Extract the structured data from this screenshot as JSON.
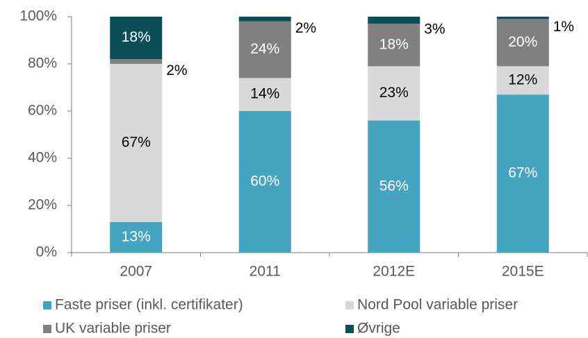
{
  "chart_data": {
    "type": "stacked_bar",
    "categories": [
      "2007",
      "2011",
      "2012E",
      "2015E"
    ],
    "series": [
      {
        "name": "Faste priser (inkl. certifikater)",
        "color": "#45a4bf",
        "label_color": "#ffffff",
        "values": [
          13,
          60,
          56,
          67
        ],
        "value_labels": [
          "13%",
          "60%",
          "56%",
          "67%"
        ]
      },
      {
        "name": "Nord Pool variable priser",
        "color": "#d9d9d9",
        "label_color": "#000000",
        "values": [
          67,
          14,
          23,
          12
        ],
        "value_labels": [
          "67%",
          "14%",
          "23%",
          "12%"
        ]
      },
      {
        "name": "UK variable priser",
        "color": "#808080",
        "label_color": "#ffffff",
        "values": [
          2,
          24,
          18,
          20
        ],
        "value_labels": [
          "2%",
          "24%",
          "18%",
          "20%"
        ]
      },
      {
        "name": "Øvrige",
        "color": "#0c4e58",
        "label_color": "#ffffff",
        "values": [
          18,
          2,
          3,
          1
        ],
        "value_labels": [
          "18%",
          "2%",
          "3%",
          "1%"
        ]
      }
    ],
    "ylim": [
      0,
      100
    ],
    "yticks": [
      {
        "value": 0,
        "label": "0%"
      },
      {
        "value": 20,
        "label": "20%"
      },
      {
        "value": 40,
        "label": "40%"
      },
      {
        "value": 60,
        "label": "60%"
      },
      {
        "value": 80,
        "label": "80%"
      },
      {
        "value": 100,
        "label": "100%"
      }
    ]
  }
}
